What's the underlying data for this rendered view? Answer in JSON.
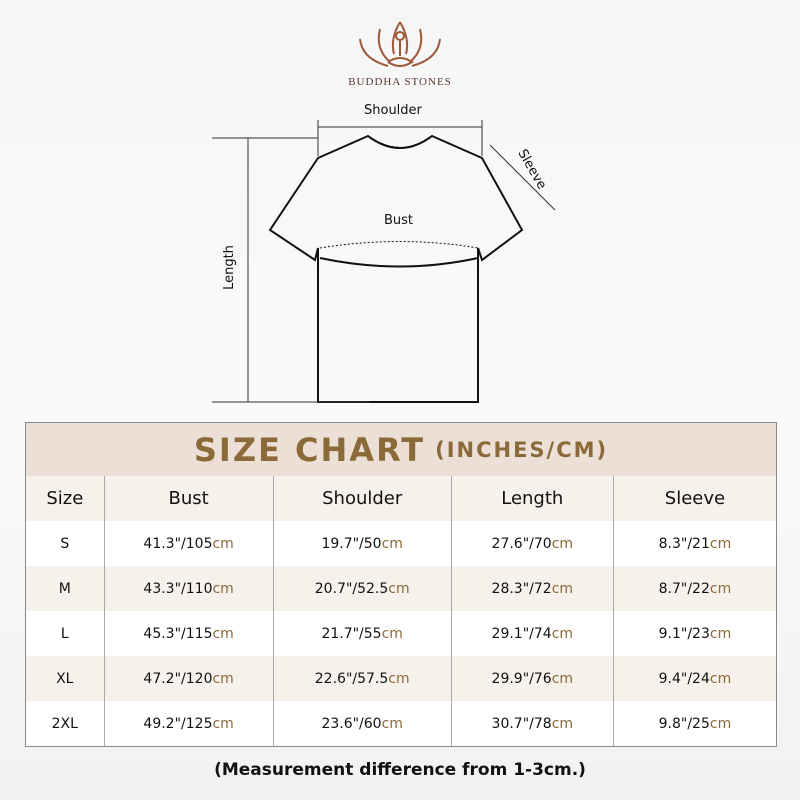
{
  "brand": {
    "name": "BUDDHA STONES",
    "logo": "lotus-meditation-logo"
  },
  "diagram": {
    "shoulder": "Shoulder",
    "sleeve": "Sleeve",
    "bust": "Bust",
    "length": "Length"
  },
  "chart": {
    "title": "SIZE CHART",
    "unit": "(INCHES/CM)",
    "headers": [
      "Size",
      "Bust",
      "Shoulder",
      "Length",
      "Sleeve"
    ],
    "rows": [
      {
        "size": "S",
        "bust": "41.3\"/105",
        "shoulder": "19.7\"/50",
        "length": "27.6\"/70",
        "sleeve": "8.3\"/21"
      },
      {
        "size": "M",
        "bust": "43.3\"/110",
        "shoulder": "20.7\"/52.5",
        "length": "28.3\"/72",
        "sleeve": "8.7\"/22"
      },
      {
        "size": "L",
        "bust": "45.3\"/115",
        "shoulder": "21.7\"/55",
        "length": "29.1\"/74",
        "sleeve": "9.1\"/23"
      },
      {
        "size": "XL",
        "bust": "47.2\"/120",
        "shoulder": "22.6\"/57.5",
        "length": "29.9\"/76",
        "sleeve": "9.4\"/24"
      },
      {
        "size": "2XL",
        "bust": "49.2\"/125",
        "shoulder": "23.6\"/60",
        "length": "30.7\"/78",
        "sleeve": "9.8\"/25"
      }
    ],
    "cm": "cm"
  },
  "note": "(Measurement difference from 1-3cm.)",
  "colors": {
    "accent": "#8b6a3a",
    "band": "#ece0d6",
    "shade": "#f7f1ec"
  }
}
